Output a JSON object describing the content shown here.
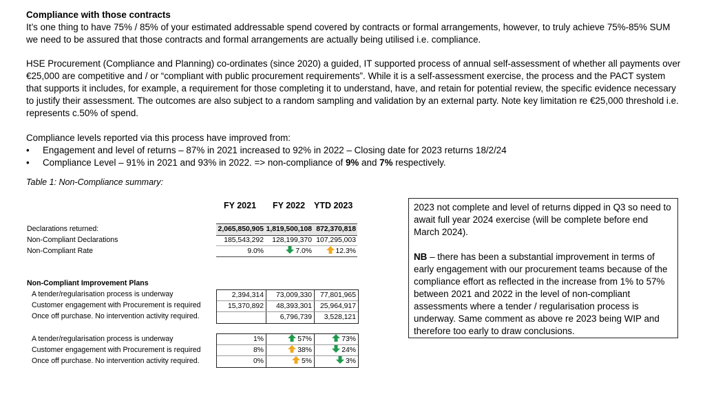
{
  "heading": "Compliance with those contracts",
  "para1": "It’s one thing to have 75% / 85% of your estimated addressable spend covered by contracts or formal arrangements, however, to truly achieve 75%-85% SUM we need to be assured that those contracts and formal arrangements are actually being utilised i.e. compliance.",
  "para2": "HSE Procurement (Compliance and Planning) co-ordinates (since 2020) a guided, IT supported process of annual self-assessment of whether all payments over €25,000 are competitive and / or “compliant with public procurement requirements”. While it is a self-assessment exercise, the process and the PACT system that supports it includes, for example, a requirement for those completing it to understand, have, and retain for potential review, the specific evidence necessary to justify their assessment. The outcomes are also subject to a random sampling and validation by an external party. Note key limitation re €25,000 threshold i.e. represents c.50% of spend.",
  "intro": "Compliance levels reported via this process have improved from:",
  "bullets": [
    "Engagement and level of returns – 87% in 2021 increased to 92% in 2022 – Closing date for 2023 returns 18/2/24",
    {
      "pre": "Compliance Level – 91% in 2021 and 93% in 2022. => non-compliance of ",
      "b1": "9%",
      "mid": " and ",
      "b2": "7%",
      "post": " respectively."
    }
  ],
  "caption": "Table 1:  Non-Compliance summary:",
  "table": {
    "columns": [
      "FY 2021",
      "FY 2022",
      "YTD 2023"
    ],
    "decl_rows": [
      {
        "label": "Declarations returned:",
        "values": [
          "2,065,850,905",
          "1,819,500,108",
          "872,370,818"
        ]
      },
      {
        "label": "Non-Compliant Declarations",
        "values": [
          "185,543,292",
          "128,199,370",
          "107,295,003"
        ]
      },
      {
        "label": "Non-Compliant Rate",
        "values": [
          "9.0%",
          "7.0%",
          "12.3%"
        ]
      }
    ],
    "rate_arrows": [
      "",
      "down-green",
      "up-orange"
    ],
    "plans_title": "Non-Compliant Improvement Plans",
    "plan_rows": [
      {
        "label": "A tender/regularisation process is underway",
        "values": [
          "2,394,314",
          "73,009,330",
          "77,801,965"
        ]
      },
      {
        "label": "Customer engagement with Procurement is required",
        "values": [
          "15,370,892",
          "48,393,301",
          "25,964,917"
        ]
      },
      {
        "label": "Once off purchase.  No intervention activity required.",
        "values": [
          "",
          "6,796,739",
          "3,528,121"
        ]
      }
    ],
    "pct_rows": [
      {
        "label": "A tender/regularisation process is underway",
        "values": [
          "1%",
          "57%",
          "73%"
        ],
        "arrows": [
          "",
          "up-green",
          "up-green"
        ]
      },
      {
        "label": "Customer engagement with Procurement is required",
        "values": [
          "8%",
          "38%",
          "24%"
        ],
        "arrows": [
          "",
          "up-orange",
          "down-green"
        ]
      },
      {
        "label": "Once off purchase.  No intervention activity required.",
        "values": [
          "0%",
          "5%",
          "3%"
        ],
        "arrows": [
          "",
          "up-orange",
          "down-green"
        ]
      }
    ],
    "colors": {
      "green": "#1e9a4c",
      "orange": "#f0a820"
    }
  },
  "note": {
    "p1": "2023 not complete and level of returns dipped in Q3 so need to await full year 2024 exercise (will be complete before end March 2024).",
    "p2_bold": "NB",
    "p2": " – there has been a substantial improvement in terms of early engagement with our procurement teams because of the compliance effort as reflected in the increase from 1% to 57% between 2021 and 2022 in the level of non-compliant assessments where a tender / regularisation process is underway. Same comment as above re 2023 being WIP and therefore too early to draw conclusions."
  }
}
